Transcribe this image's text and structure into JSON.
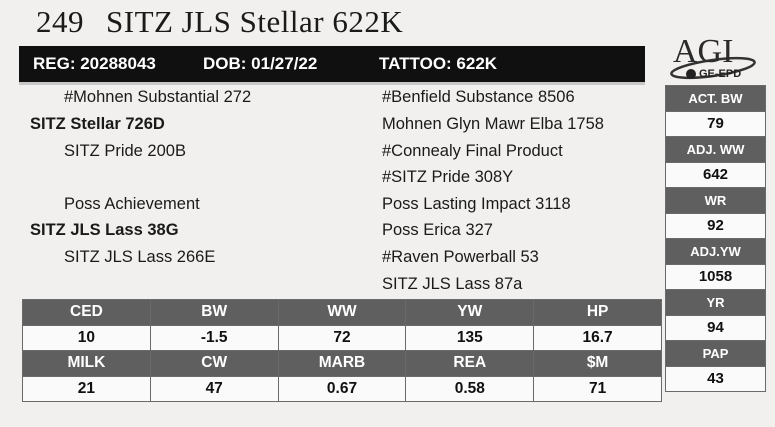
{
  "header": {
    "lot_number": "249",
    "animal_name": "SITZ JLS Stellar 622K"
  },
  "logo": {
    "text": "AGI",
    "subtext": "GE-EPD"
  },
  "id_bar": {
    "reg": "REG: 20288043",
    "dob": "DOB: 01/27/22",
    "tattoo": "TATTOO: 622K"
  },
  "pedigree": {
    "sire_sire": "#Mohnen Substantial 272",
    "sire": "SITZ Stellar 726D",
    "sire_dam": "SITZ Pride 200B",
    "dam_sire": "Poss Achievement",
    "dam": "SITZ JLS Lass 38G",
    "dam_dam": "SITZ JLS Lass 266E",
    "ss_sire": "#Benfield Substance 8506",
    "ss_dam": "Mohnen Glyn Mawr Elba 1758",
    "sd_sire": "#Connealy Final Product",
    "sd_dam": "#SITZ Pride 308Y",
    "ds_sire": "Poss Lasting Impact 3118",
    "ds_dam": "Poss Erica 327",
    "dd_sire": "#Raven Powerball 53",
    "dd_dam": "SITZ JLS Lass 87a"
  },
  "side_stats": [
    {
      "label": "ACT. BW",
      "value": "79"
    },
    {
      "label": "ADJ. WW",
      "value": "642"
    },
    {
      "label": "WR",
      "value": "92"
    },
    {
      "label": "ADJ.YW",
      "value": "1058"
    },
    {
      "label": "YR",
      "value": "94"
    },
    {
      "label": "PAP",
      "value": "43"
    }
  ],
  "epd": {
    "row1": [
      {
        "label": "CED",
        "value": "10"
      },
      {
        "label": "BW",
        "value": "-1.5"
      },
      {
        "label": "WW",
        "value": "72"
      },
      {
        "label": "YW",
        "value": "135"
      },
      {
        "label": "HP",
        "value": "16.7"
      }
    ],
    "row2": [
      {
        "label": "MILK",
        "value": "21"
      },
      {
        "label": "CW",
        "value": "47"
      },
      {
        "label": "MARB",
        "value": "0.67"
      },
      {
        "label": "REA",
        "value": "0.58"
      },
      {
        "label": "$M",
        "value": "71"
      }
    ]
  }
}
